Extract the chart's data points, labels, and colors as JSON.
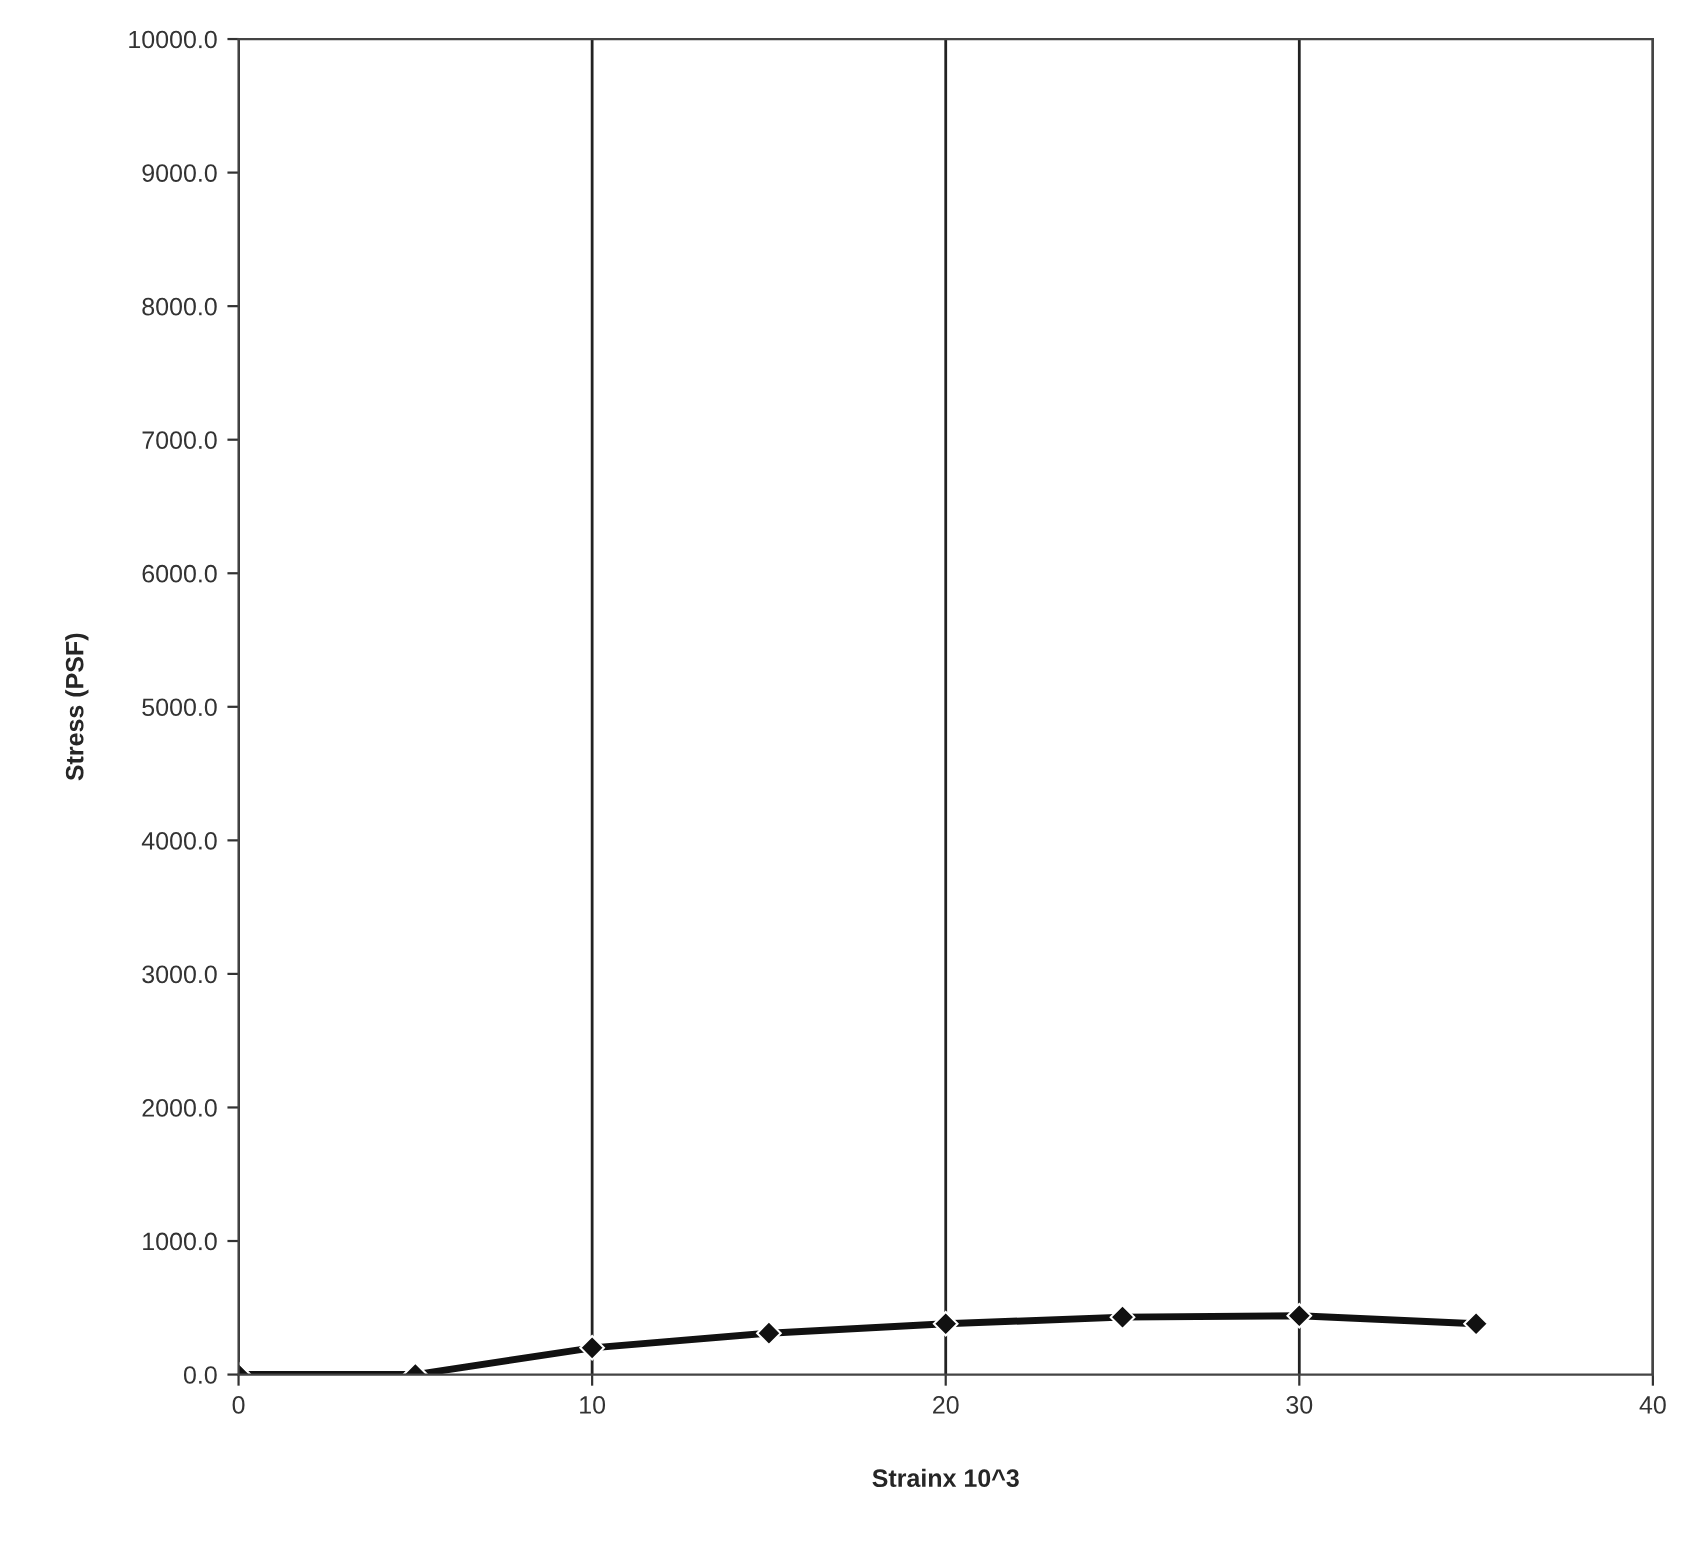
{
  "chart_data": {
    "type": "line",
    "xlabel": "Strainx 10^3",
    "ylabel": "Stress (PSF)",
    "x": [
      0,
      5,
      10,
      15,
      20,
      25,
      30,
      35
    ],
    "series": [
      {
        "color": "#111111",
        "values": [
          0,
          0,
          200,
          310,
          380,
          430,
          440,
          380
        ]
      }
    ],
    "xlim": [
      0,
      40
    ],
    "xticks": [
      0,
      10,
      20,
      30,
      40
    ],
    "ylim": [
      0,
      10000
    ],
    "yticks": [
      {
        "value": 0,
        "label": "0.0"
      },
      {
        "value": 1000,
        "label": "1000.0"
      },
      {
        "value": 2000,
        "label": "2000.0"
      },
      {
        "value": 3000,
        "label": "3000.0"
      },
      {
        "value": 4000,
        "label": "4000.0"
      },
      {
        "value": 5000,
        "label": "5000.0"
      },
      {
        "value": 6000,
        "label": "6000.0"
      },
      {
        "value": 7000,
        "label": "7000.0"
      },
      {
        "value": 8000,
        "label": "8000.0"
      },
      {
        "value": 9000,
        "label": "9000.0"
      },
      {
        "value": 10000,
        "label": "10000.0"
      }
    ],
    "grid": "x",
    "marker": "diamond",
    "line_style": "solid"
  }
}
